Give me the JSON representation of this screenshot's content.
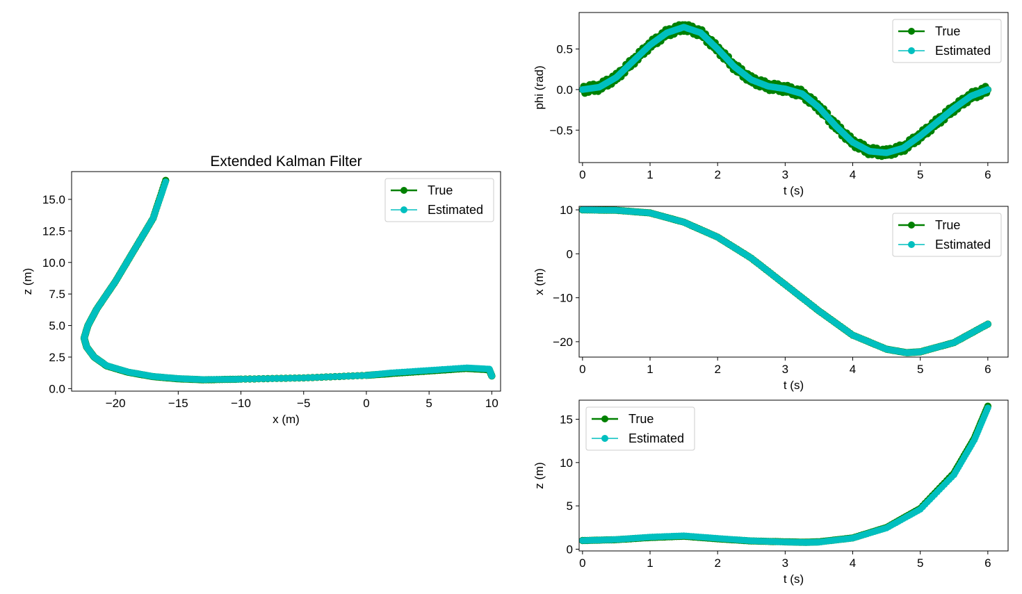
{
  "colors": {
    "true": "#008000",
    "estimated": "#00bfbf"
  },
  "chart_data": [
    {
      "id": "xz",
      "type": "line",
      "title": "Extended Kalman Filter",
      "xlabel": "x (m)",
      "ylabel": "z (m)",
      "xlim": [
        -23.5,
        10.7
      ],
      "ylim": [
        -0.2,
        17.2
      ],
      "xticks": [
        -20,
        -15,
        -10,
        -5,
        0,
        5,
        10
      ],
      "xtick_labels": [
        "−20",
        "−15",
        "−10",
        "−5",
        "0",
        "5",
        "10"
      ],
      "yticks": [
        0,
        2.5,
        5,
        7.5,
        10,
        12.5,
        15
      ],
      "ytick_labels": [
        "0.0",
        "2.5",
        "5.0",
        "7.5",
        "10.0",
        "12.5",
        "15.0"
      ],
      "legend": {
        "placement": "upper right",
        "entries": [
          "True",
          "Estimated"
        ]
      },
      "series": [
        {
          "name": "True",
          "color": "#008000",
          "points": [
            [
              10,
              1
            ],
            [
              9.8,
              1.5
            ],
            [
              8,
              1.6
            ],
            [
              5,
              1.4
            ],
            [
              2,
              1.2
            ],
            [
              0,
              1.05
            ],
            [
              -5,
              0.85
            ],
            [
              -10,
              0.75
            ],
            [
              -13,
              0.7
            ],
            [
              -15,
              0.78
            ],
            [
              -17,
              0.95
            ],
            [
              -19,
              1.3
            ],
            [
              -20.7,
              1.8
            ],
            [
              -21.7,
              2.5
            ],
            [
              -22.3,
              3.3
            ],
            [
              -22.5,
              4
            ],
            [
              -22.2,
              5
            ],
            [
              -21.5,
              6.3
            ],
            [
              -20,
              8.5
            ],
            [
              -18.5,
              11
            ],
            [
              -17,
              13.5
            ],
            [
              -16,
              16.5
            ]
          ]
        },
        {
          "name": "Estimated",
          "color": "#00bfbf",
          "points": [
            [
              10,
              1
            ],
            [
              9.8,
              1.55
            ],
            [
              8,
              1.65
            ],
            [
              5,
              1.45
            ],
            [
              2,
              1.25
            ],
            [
              0,
              1.05
            ],
            [
              -5,
              0.85
            ],
            [
              -10,
              0.75
            ],
            [
              -13,
              0.72
            ],
            [
              -15,
              0.8
            ],
            [
              -17,
              0.97
            ],
            [
              -19,
              1.32
            ],
            [
              -20.7,
              1.82
            ],
            [
              -21.7,
              2.5
            ],
            [
              -22.3,
              3.3
            ],
            [
              -22.5,
              4
            ],
            [
              -22.2,
              5
            ],
            [
              -21.5,
              6.3
            ],
            [
              -20,
              8.5
            ],
            [
              -18.5,
              11
            ],
            [
              -17,
              13.5
            ],
            [
              -16,
              16.4
            ]
          ]
        }
      ]
    },
    {
      "id": "phi",
      "type": "line",
      "title": "",
      "xlabel": "t (s)",
      "ylabel": "phi (rad)",
      "xlim": [
        -0.05,
        6.3
      ],
      "ylim": [
        -0.9,
        0.95
      ],
      "xticks": [
        0,
        1,
        2,
        3,
        4,
        5,
        6
      ],
      "xtick_labels": [
        "0",
        "1",
        "2",
        "3",
        "4",
        "5",
        "6"
      ],
      "yticks": [
        -0.5,
        0,
        0.5
      ],
      "ytick_labels": [
        "−0.5",
        "0.0",
        "0.5"
      ],
      "legend": {
        "placement": "upper right",
        "entries": [
          "True",
          "Estimated"
        ]
      },
      "series": [
        {
          "name": "True",
          "color": "#008000",
          "points": [
            [
              0,
              0
            ],
            [
              0.25,
              0.03
            ],
            [
              0.5,
              0.15
            ],
            [
              0.75,
              0.35
            ],
            [
              1,
              0.55
            ],
            [
              1.25,
              0.7
            ],
            [
              1.5,
              0.77
            ],
            [
              1.75,
              0.7
            ],
            [
              2,
              0.5
            ],
            [
              2.25,
              0.28
            ],
            [
              2.5,
              0.12
            ],
            [
              2.75,
              0.04
            ],
            [
              3,
              0.01
            ],
            [
              3.25,
              -0.05
            ],
            [
              3.5,
              -0.22
            ],
            [
              3.75,
              -0.45
            ],
            [
              4,
              -0.65
            ],
            [
              4.25,
              -0.76
            ],
            [
              4.5,
              -0.78
            ],
            [
              4.75,
              -0.72
            ],
            [
              5,
              -0.57
            ],
            [
              5.25,
              -0.4
            ],
            [
              5.5,
              -0.23
            ],
            [
              5.75,
              -0.08
            ],
            [
              6,
              0
            ]
          ]
        },
        {
          "name": "Estimated",
          "color": "#00bfbf",
          "points": [
            [
              0,
              0
            ],
            [
              0.25,
              0.03
            ],
            [
              0.5,
              0.15
            ],
            [
              0.75,
              0.35
            ],
            [
              1,
              0.55
            ],
            [
              1.25,
              0.7
            ],
            [
              1.5,
              0.77
            ],
            [
              1.75,
              0.7
            ],
            [
              2,
              0.5
            ],
            [
              2.25,
              0.28
            ],
            [
              2.5,
              0.12
            ],
            [
              2.75,
              0.04
            ],
            [
              3,
              0.01
            ],
            [
              3.25,
              -0.05
            ],
            [
              3.5,
              -0.22
            ],
            [
              3.75,
              -0.45
            ],
            [
              4,
              -0.65
            ],
            [
              4.25,
              -0.76
            ],
            [
              4.5,
              -0.78
            ],
            [
              4.75,
              -0.72
            ],
            [
              5,
              -0.57
            ],
            [
              5.25,
              -0.4
            ],
            [
              5.5,
              -0.23
            ],
            [
              5.75,
              -0.08
            ],
            [
              6,
              0
            ]
          ]
        }
      ]
    },
    {
      "id": "xt",
      "type": "line",
      "title": "",
      "xlabel": "t (s)",
      "ylabel": "x (m)",
      "xlim": [
        -0.05,
        6.3
      ],
      "ylim": [
        -23.5,
        10.8
      ],
      "xticks": [
        0,
        1,
        2,
        3,
        4,
        5,
        6
      ],
      "xtick_labels": [
        "0",
        "1",
        "2",
        "3",
        "4",
        "5",
        "6"
      ],
      "yticks": [
        -20,
        -10,
        0,
        10
      ],
      "ytick_labels": [
        "−20",
        "−10",
        "0",
        "10"
      ],
      "legend": {
        "placement": "upper right",
        "entries": [
          "True",
          "Estimated"
        ]
      },
      "series": [
        {
          "name": "True",
          "color": "#008000",
          "points": [
            [
              0,
              10
            ],
            [
              0.5,
              9.9
            ],
            [
              1,
              9.3
            ],
            [
              1.5,
              7.2
            ],
            [
              2,
              3.8
            ],
            [
              2.5,
              -1
            ],
            [
              3,
              -7
            ],
            [
              3.5,
              -13
            ],
            [
              4,
              -18.5
            ],
            [
              4.5,
              -21.7
            ],
            [
              4.8,
              -22.5
            ],
            [
              5,
              -22.3
            ],
            [
              5.5,
              -20.2
            ],
            [
              6,
              -16
            ]
          ]
        },
        {
          "name": "Estimated",
          "color": "#00bfbf",
          "points": [
            [
              0,
              10
            ],
            [
              0.5,
              9.9
            ],
            [
              1,
              9.3
            ],
            [
              1.5,
              7.2
            ],
            [
              2,
              3.8
            ],
            [
              2.5,
              -1
            ],
            [
              3,
              -7
            ],
            [
              3.5,
              -13
            ],
            [
              4,
              -18.5
            ],
            [
              4.5,
              -21.7
            ],
            [
              4.8,
              -22.5
            ],
            [
              5,
              -22.3
            ],
            [
              5.5,
              -20.2
            ],
            [
              6,
              -16
            ]
          ]
        }
      ]
    },
    {
      "id": "zt",
      "type": "line",
      "title": "",
      "xlabel": "t (s)",
      "ylabel": "z (m)",
      "xlim": [
        -0.05,
        6.3
      ],
      "ylim": [
        -0.2,
        17.2
      ],
      "xticks": [
        0,
        1,
        2,
        3,
        4,
        5,
        6
      ],
      "xtick_labels": [
        "0",
        "1",
        "2",
        "3",
        "4",
        "5",
        "6"
      ],
      "yticks": [
        0,
        5,
        10,
        15
      ],
      "ytick_labels": [
        "0",
        "5",
        "10",
        "15"
      ],
      "legend": {
        "placement": "upper left",
        "entries": [
          "True",
          "Estimated"
        ]
      },
      "series": [
        {
          "name": "True",
          "color": "#008000",
          "points": [
            [
              0,
              1
            ],
            [
              0.5,
              1.1
            ],
            [
              1,
              1.35
            ],
            [
              1.5,
              1.5
            ],
            [
              2,
              1.2
            ],
            [
              2.5,
              0.95
            ],
            [
              3,
              0.85
            ],
            [
              3.3,
              0.8
            ],
            [
              3.5,
              0.85
            ],
            [
              4,
              1.3
            ],
            [
              4.5,
              2.5
            ],
            [
              5,
              4.7
            ],
            [
              5.5,
              8.8
            ],
            [
              5.8,
              12.8
            ],
            [
              6,
              16.5
            ]
          ]
        },
        {
          "name": "Estimated",
          "color": "#00bfbf",
          "points": [
            [
              0,
              1
            ],
            [
              0.5,
              1.12
            ],
            [
              1,
              1.4
            ],
            [
              1.5,
              1.55
            ],
            [
              2,
              1.25
            ],
            [
              2.5,
              0.97
            ],
            [
              3,
              0.83
            ],
            [
              3.3,
              0.78
            ],
            [
              3.5,
              0.82
            ],
            [
              4,
              1.28
            ],
            [
              4.5,
              2.45
            ],
            [
              5,
              4.6
            ],
            [
              5.5,
              8.6
            ],
            [
              5.8,
              12.6
            ],
            [
              6,
              16.3
            ]
          ]
        }
      ]
    }
  ]
}
